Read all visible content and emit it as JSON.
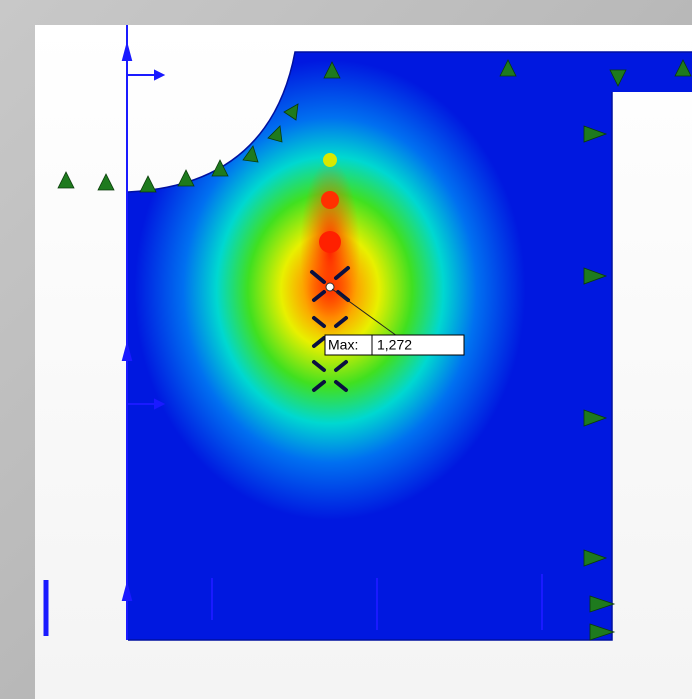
{
  "annotation": {
    "label": "Max:",
    "value": "1,272"
  }
}
